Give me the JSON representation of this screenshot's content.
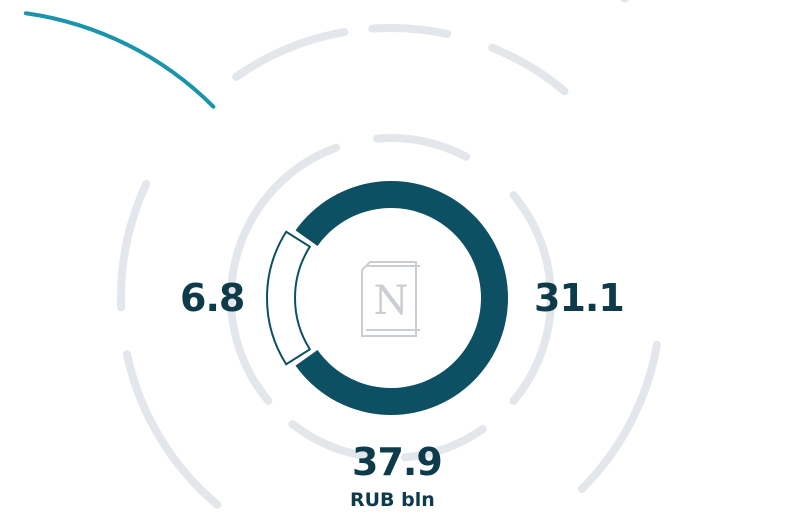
{
  "colors": {
    "main_segment": "#0d4f63",
    "minor_segment_fill": "#ffffff",
    "minor_segment_stroke": "#0d4f63",
    "decor_arcs": "#e3e6ea",
    "accent_arcs": "#1a94ab",
    "logo": "#c9ced3"
  },
  "logo": {
    "letter": "N",
    "icon": "package-icon"
  },
  "chart_data": {
    "type": "pie",
    "style": "donut",
    "categories": [
      "",
      ""
    ],
    "values": [
      6.8,
      31.1
    ],
    "total": 37.9,
    "unit": "RUB bln",
    "labels": {
      "left": "6.8",
      "right": "31.1",
      "total": "37.9",
      "unit": "RUB bln"
    }
  }
}
